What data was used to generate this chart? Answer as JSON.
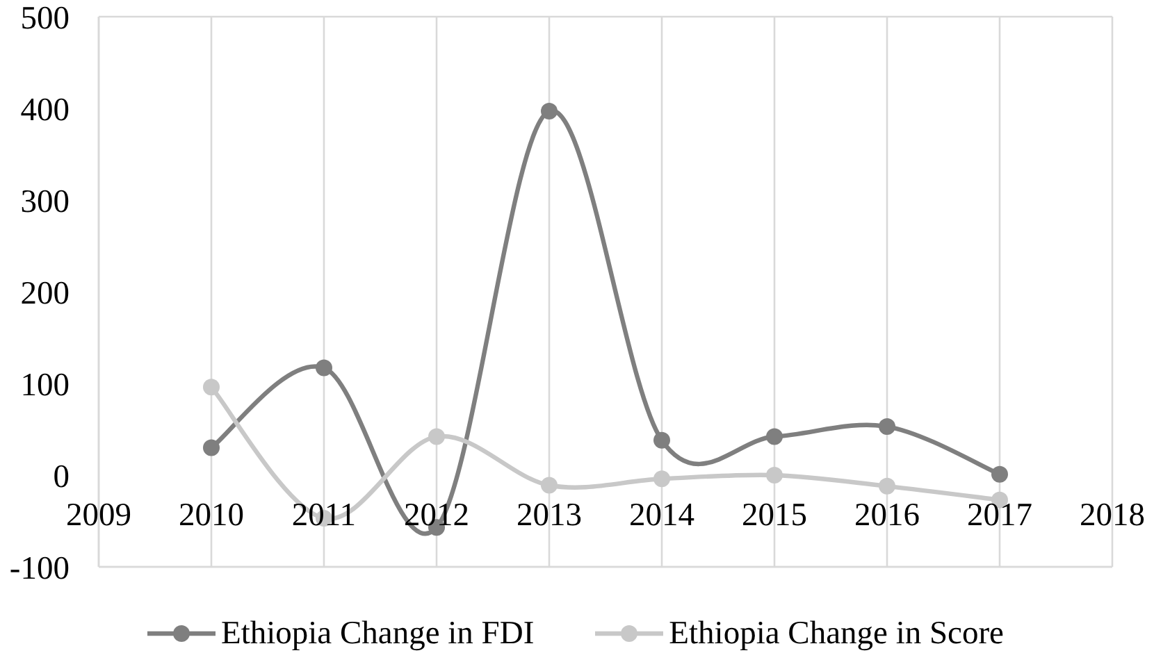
{
  "chart_data": {
    "type": "line",
    "x": [
      2010,
      2011,
      2012,
      2013,
      2014,
      2015,
      2016,
      2017
    ],
    "series": [
      {
        "name": "Ethiopia Change in FDI",
        "color": "#7f7f7f",
        "values": [
          30,
          117,
          -57,
          397,
          38,
          42,
          53,
          1
        ]
      },
      {
        "name": "Ethiopia Change in Score",
        "color": "#c8c8c8",
        "values": [
          96,
          -47,
          42,
          -11,
          -4,
          0,
          -12,
          -27
        ]
      }
    ],
    "xlim": [
      2009,
      2018
    ],
    "xticks": [
      2009,
      2010,
      2011,
      2012,
      2013,
      2014,
      2015,
      2016,
      2017,
      2018
    ],
    "ylim": [
      -100,
      500
    ],
    "yticks": [
      -100,
      0,
      100,
      200,
      300,
      400,
      500
    ],
    "grid": true,
    "legend": "bottom",
    "marker": "circle",
    "line_style": "solid"
  }
}
